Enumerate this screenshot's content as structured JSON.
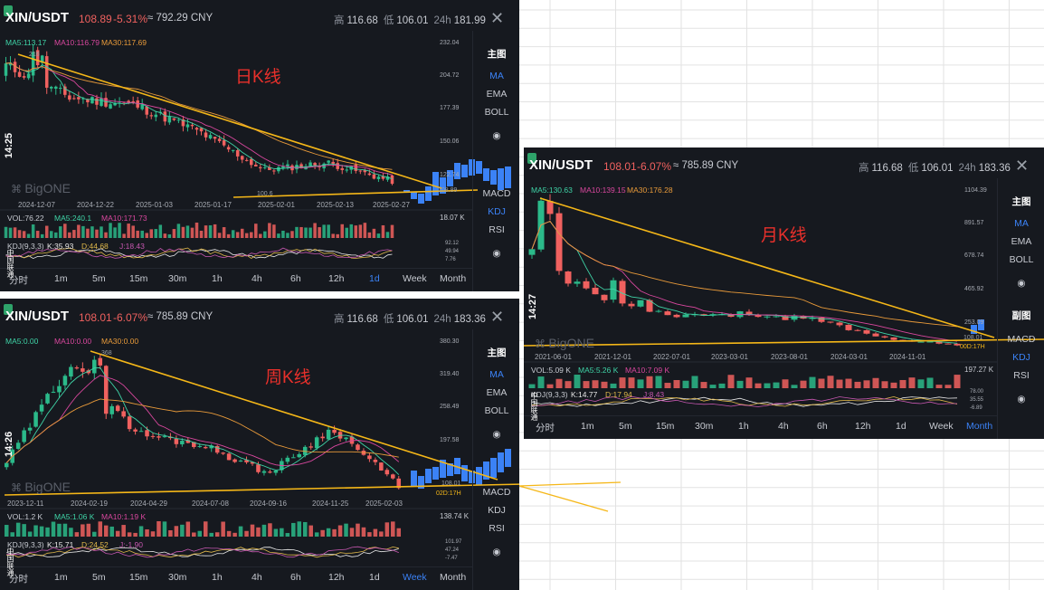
{
  "colors": {
    "up": "#2bba8a",
    "down": "#f0615f",
    "ma5": "#3fd4a7",
    "ma10": "#d9479e",
    "ma30": "#e89a3a",
    "trend": "#f5b718",
    "accent": "#3b82f6",
    "bg": "#16191f"
  },
  "icons": {
    "close": "close-icon",
    "eye": "eye-icon",
    "logo": "bigone-logo-icon",
    "wifi": "signal-icon"
  },
  "common": {
    "high_label": "高",
    "low_label": "低",
    "vol_label": "24h",
    "close_glyph": "✕",
    "eye_glyph": "◉",
    "brand": "BigONE",
    "vertical_text": "中国联通"
  },
  "panels": [
    {
      "id": "daily",
      "pair": "XIN/USDT",
      "price": "108.89",
      "change": "-5.31%",
      "cny": "≈ 792.29 CNY",
      "high": "116.68",
      "low": "106.01",
      "vol24h": "181.99",
      "time_label": "14:25",
      "note": "日K线",
      "ma_line": {
        "ma5": "MA5:113.17",
        "ma10": "MA10:116.79",
        "ma30": "MA30:117.69"
      },
      "y_ticks": [
        "232.04",
        "204.72",
        "177.39",
        "150.06",
        "122.74"
      ],
      "peak_label": "216",
      "low_label_mark": "100.6",
      "cur_label": "108.89",
      "x_labels": [
        "2024-12-07",
        "2024-12-22",
        "2025-01-03",
        "2025-01-17",
        "2025-02-01",
        "2025-02-13",
        "2025-02-27"
      ],
      "vol_line": {
        "vol": "VOL:76.22",
        "ma5": "MA5:240.1",
        "ma10": "MA10:171.73"
      },
      "vol_axis": "18.07 K",
      "kdj_line": {
        "label": "KDJ(9,3,3)",
        "k": "K:35.93",
        "d": "D:44.68",
        "j": "J:18.43"
      },
      "kdj_ticks": [
        "92.12",
        "49.94",
        "7.76"
      ],
      "side_items": [
        "主图",
        "MA",
        "EMA",
        "BOLL",
        "◉",
        "MACD",
        "KDJ",
        "RSI",
        "◉"
      ],
      "side_active": [
        1,
        6
      ],
      "timeframes": [
        "分时",
        "1m",
        "5m",
        "15m",
        "30m",
        "1h",
        "4h",
        "6h",
        "12h",
        "1d",
        "Week",
        "Month"
      ],
      "tf_active": 9
    },
    {
      "id": "weekly",
      "pair": "XIN/USDT",
      "price": "108.01",
      "change": "-6.07%",
      "cny": "≈ 785.89 CNY",
      "high": "116.68",
      "low": "106.01",
      "vol24h": "183.36",
      "time_label": "14:26",
      "note": "周K线",
      "ma_line": {
        "ma5": "MA5:0.00",
        "ma10": "MA10:0.00",
        "ma30": "MA30:0.00"
      },
      "y_ticks": [
        "380.30",
        "319.40",
        "258.49",
        "197.58"
      ],
      "peak_label": "368",
      "cur_label": "108.01",
      "countdown": "02D:17H",
      "x_labels": [
        "2023-12-11",
        "2024-02-19",
        "2024-04-29",
        "2024-07-08",
        "2024-09-16",
        "2024-11-25",
        "2025-02-03"
      ],
      "vol_line": {
        "vol": "VOL:1.2 K",
        "ma5": "MA5:1.06 K",
        "ma10": "MA10:1.19 K"
      },
      "vol_axis": "138.74 K",
      "kdj_line": {
        "label": "KDJ(9,3,3)",
        "k": "K:15.71",
        "d": "D:24.52",
        "j": "J:-1.90"
      },
      "kdj_ticks": [
        "101.97",
        "47.24",
        "-7.47"
      ],
      "side_items": [
        "主图",
        "MA",
        "EMA",
        "BOLL",
        "◉",
        "MACD",
        "KDJ",
        "RSI",
        "◉"
      ],
      "side_active": [
        1
      ],
      "timeframes": [
        "分时",
        "1m",
        "5m",
        "15m",
        "30m",
        "1h",
        "4h",
        "6h",
        "12h",
        "1d",
        "Week",
        "Month"
      ],
      "tf_active": 10
    },
    {
      "id": "monthly",
      "pair": "XIN/USDT",
      "price": "108.01",
      "change": "-6.07%",
      "cny": "≈ 785.89 CNY",
      "high": "116.68",
      "low": "106.01",
      "vol24h": "183.36",
      "time_label": "14:27",
      "note": "月K线",
      "ma_line": {
        "ma5": "MA5:130.63",
        "ma10": "MA10:139.15",
        "ma30": "MA30:176.28"
      },
      "y_ticks": [
        "1104.39",
        "891.57",
        "678.74",
        "465.92",
        "253.09"
      ],
      "cur_label": "108.01",
      "countdown": "00D:17H",
      "x_labels": [
        "2021-06-01",
        "2021-12-01",
        "2022-07-01",
        "2023-03-01",
        "2023-08-01",
        "2024-03-01",
        "2024-11-01"
      ],
      "vol_line": {
        "vol": "VOL:5.09 K",
        "ma5": "MA5:5.26 K",
        "ma10": "MA10:7.09 K"
      },
      "vol_axis": "197.27 K",
      "kdj_line": {
        "label": "KDJ(9,3,3)",
        "k": "K:14.77",
        "d": "D:17.94",
        "j": "J:8.43"
      },
      "kdj_ticks": [
        "78.00",
        "35.55",
        "-6.89"
      ],
      "side_items": [
        "主图",
        "MA",
        "EMA",
        "BOLL",
        "◉",
        "副图",
        "MACD",
        "KDJ",
        "RSI",
        "◉"
      ],
      "side_active": [
        1,
        7
      ],
      "timeframes": [
        "分时",
        "1m",
        "5m",
        "15m",
        "30m",
        "1h",
        "4h",
        "6h",
        "12h",
        "1d",
        "Week",
        "Month"
      ],
      "tf_active": 11
    }
  ],
  "chart_data": [
    {
      "type": "candlestick",
      "title": "日K线",
      "pair": "XIN/USDT",
      "interval": "1d",
      "x": [
        "2024-12-07",
        "2024-12-22",
        "2025-01-03",
        "2025-01-17",
        "2025-02-01",
        "2025-02-13",
        "2025-02-27"
      ],
      "close": [
        205,
        178,
        172,
        150,
        118,
        124,
        108.89
      ],
      "ylim": [
        100,
        232.04
      ]
    },
    {
      "type": "candlestick",
      "title": "周K线",
      "pair": "XIN/USDT",
      "interval": "Week",
      "x": [
        "2023-12-11",
        "2024-02-19",
        "2024-04-29",
        "2024-07-08",
        "2024-09-16",
        "2024-11-25",
        "2025-02-03"
      ],
      "close": [
        150,
        330,
        200,
        180,
        130,
        210,
        108.01
      ],
      "ylim": [
        100,
        380.3
      ]
    },
    {
      "type": "candlestick",
      "title": "月K线",
      "pair": "XIN/USDT",
      "interval": "Month",
      "x": [
        "2021-06-01",
        "2021-12-01",
        "2022-07-01",
        "2023-03-01",
        "2023-08-01",
        "2024-03-01",
        "2024-11-01"
      ],
      "close": [
        700,
        380,
        290,
        300,
        260,
        150,
        108.01
      ],
      "ylim": [
        100,
        1104.39
      ]
    }
  ]
}
